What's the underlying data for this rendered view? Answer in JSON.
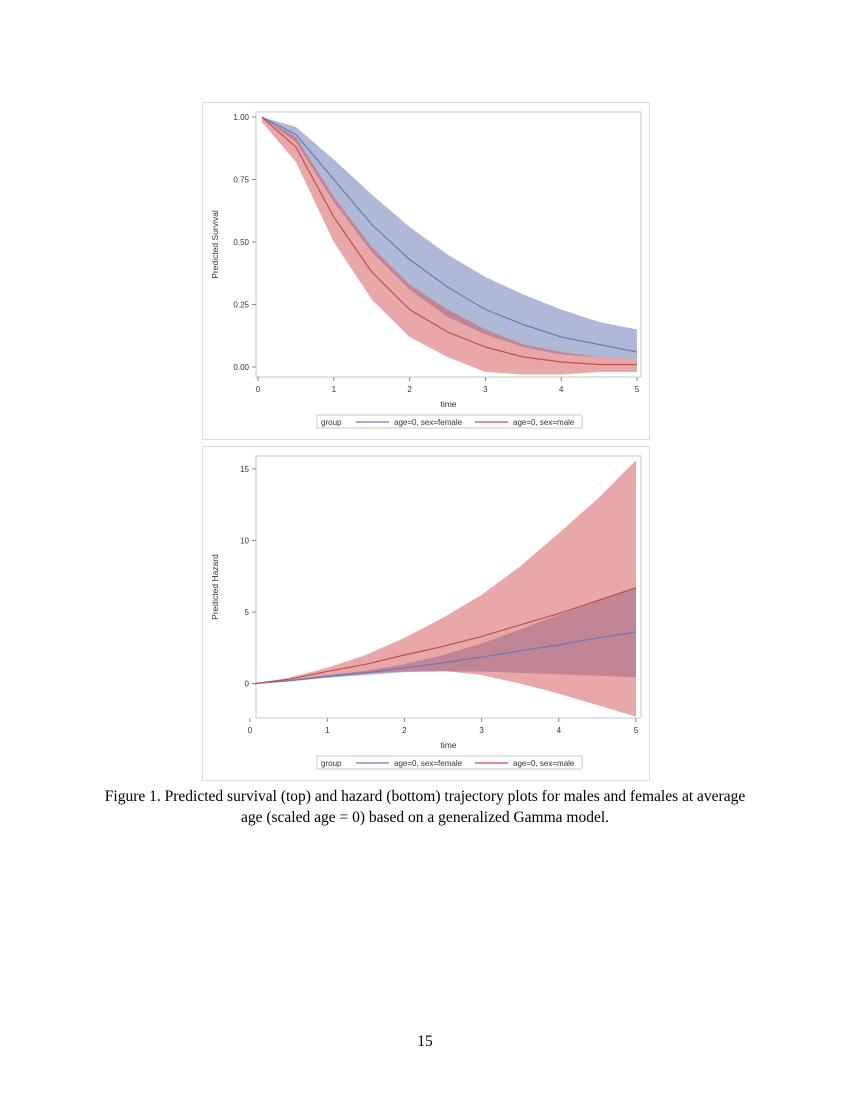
{
  "chart_data": [
    {
      "type": "area",
      "xlabel": "time",
      "ylabel": "Predicted Survival",
      "xlim": [
        0,
        5
      ],
      "ylim": [
        -0.04,
        1.02
      ],
      "xticks": [
        "0",
        "1",
        "2",
        "3",
        "4",
        "5"
      ],
      "yticks": [
        "0.00",
        "0.25",
        "0.50",
        "0.75",
        "1.00"
      ],
      "grid": false,
      "legend": {
        "position": "bottom",
        "title": "group"
      },
      "x": [
        0.05,
        0.5,
        1,
        1.5,
        2,
        2.5,
        3,
        3.5,
        4,
        4.5,
        5
      ],
      "series": [
        {
          "name": "age=0, sex=female",
          "color": "#6a7ab8",
          "values": [
            1.0,
            0.93,
            0.75,
            0.57,
            0.43,
            0.32,
            0.23,
            0.17,
            0.12,
            0.09,
            0.06
          ],
          "upper": [
            1.0,
            0.96,
            0.83,
            0.69,
            0.56,
            0.45,
            0.36,
            0.29,
            0.23,
            0.18,
            0.15
          ],
          "lower": [
            1.0,
            0.9,
            0.66,
            0.46,
            0.31,
            0.2,
            0.13,
            0.08,
            0.05,
            0.04,
            0.03
          ]
        },
        {
          "name": "age=0, sex=male",
          "color": "#c0504d",
          "values": [
            1.0,
            0.88,
            0.6,
            0.38,
            0.23,
            0.14,
            0.08,
            0.04,
            0.02,
            0.01,
            0.01
          ],
          "upper": [
            1.0,
            0.92,
            0.68,
            0.48,
            0.33,
            0.23,
            0.15,
            0.09,
            0.06,
            0.04,
            0.03
          ],
          "lower": [
            0.98,
            0.82,
            0.5,
            0.27,
            0.12,
            0.04,
            -0.02,
            -0.03,
            -0.03,
            -0.02,
            -0.02
          ]
        }
      ]
    },
    {
      "type": "area",
      "xlabel": "time",
      "ylabel": "Predicted Hazard",
      "xlim": [
        0,
        5
      ],
      "ylim": [
        -2.4,
        15.9
      ],
      "xticks": [
        "0",
        "1",
        "2",
        "3",
        "4",
        "5"
      ],
      "yticks": [
        "0",
        "5",
        "10",
        "15"
      ],
      "grid": false,
      "legend": {
        "position": "bottom",
        "title": "group"
      },
      "x": [
        0.05,
        0.5,
        1,
        1.5,
        2,
        2.5,
        3,
        3.5,
        4,
        4.5,
        5
      ],
      "series": [
        {
          "name": "age=0, sex=female",
          "color": "#6a7ab8",
          "values": [
            0,
            0.2,
            0.5,
            0.75,
            1.1,
            1.45,
            1.85,
            2.3,
            2.7,
            3.2,
            3.6
          ],
          "upper": [
            0,
            0.25,
            0.6,
            0.9,
            1.35,
            2.0,
            2.8,
            3.8,
            4.8,
            5.8,
            6.7
          ],
          "lower": [
            0,
            0.15,
            0.4,
            0.6,
            0.8,
            0.85,
            0.85,
            0.75,
            0.65,
            0.55,
            0.45
          ]
        },
        {
          "name": "age=0, sex=male",
          "color": "#c0504d",
          "values": [
            0,
            0.3,
            0.85,
            1.35,
            2.0,
            2.6,
            3.3,
            4.1,
            4.9,
            5.8,
            6.7
          ],
          "upper": [
            0,
            0.4,
            1.1,
            2.0,
            3.2,
            4.6,
            6.2,
            8.2,
            10.5,
            12.9,
            15.6
          ],
          "lower": [
            0,
            0.2,
            0.5,
            0.7,
            0.85,
            0.9,
            0.6,
            0.0,
            -0.7,
            -1.5,
            -2.3
          ]
        }
      ]
    }
  ],
  "caption": "Figure 1. Predicted survival (top) and hazard (bottom) trajectory plots for males and females at average age (scaled age = 0) based on a generalized Gamma model.",
  "page_number": "15"
}
